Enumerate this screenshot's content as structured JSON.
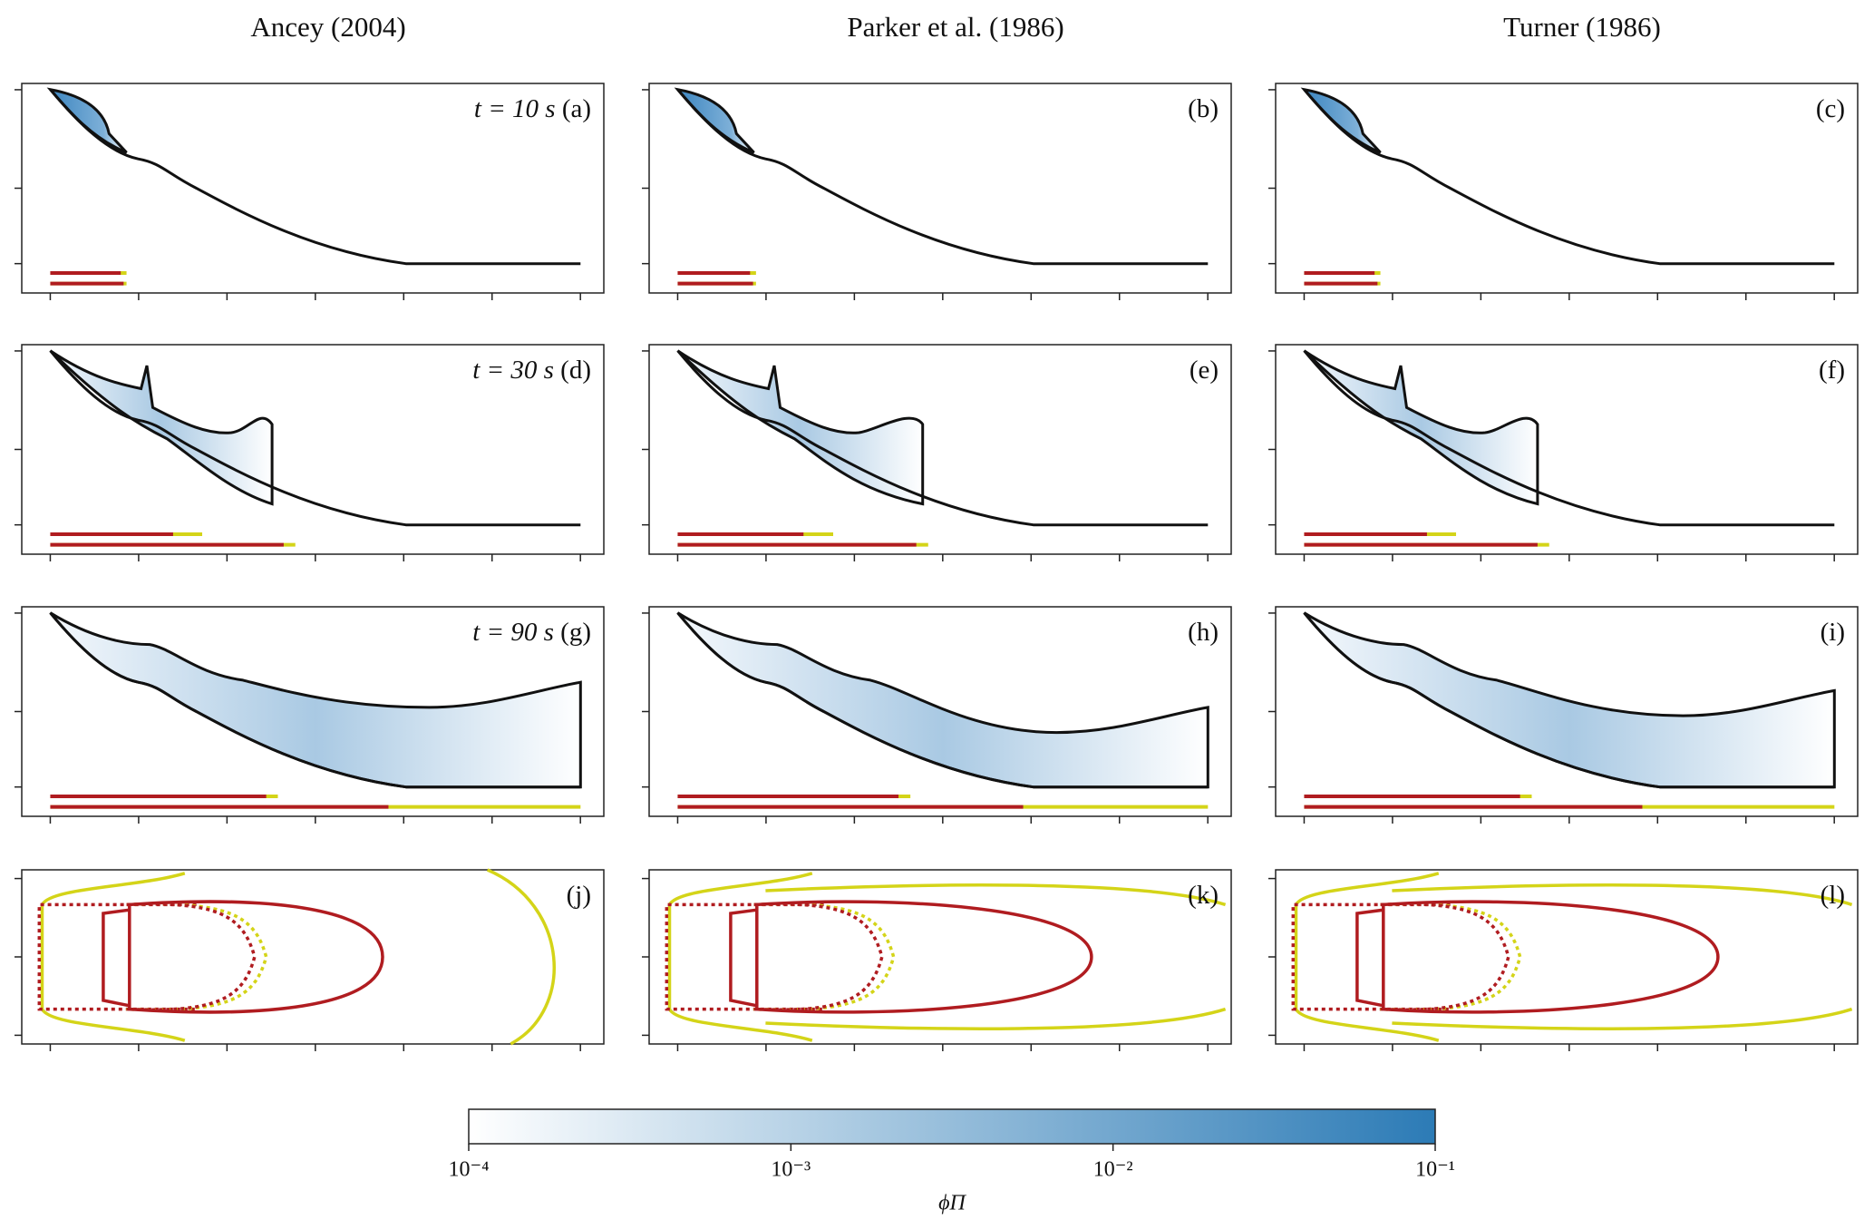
{
  "columns": [
    "Ancey (2004)",
    "Parker et al. (1986)",
    "Turner (1986)"
  ],
  "rows": [
    {
      "time": "t = 10 s",
      "labels": [
        "(a)",
        "(b)",
        "(c)"
      ]
    },
    {
      "time": "t = 30 s",
      "labels": [
        "(d)",
        "(e)",
        "(f)"
      ]
    },
    {
      "time": "t = 90 s",
      "labels": [
        "(g)",
        "(h)",
        "(i)"
      ]
    },
    {
      "labels": [
        "(j)",
        "(k)",
        "(l)"
      ]
    }
  ],
  "chart_data": {
    "type": "colorbar",
    "scale": "log",
    "label": "ϕΠ",
    "colors": [
      "#ffffff",
      "#2c7bb6"
    ],
    "xlim": [
      0.0001,
      0.1
    ],
    "xticks": [
      {
        "value": 0.0001,
        "label": "10⁻⁴"
      },
      {
        "value": 0.001,
        "label": "10⁻³"
      },
      {
        "value": 0.01,
        "label": "10⁻²"
      },
      {
        "value": 0.1,
        "label": "10⁻¹"
      }
    ]
  }
}
